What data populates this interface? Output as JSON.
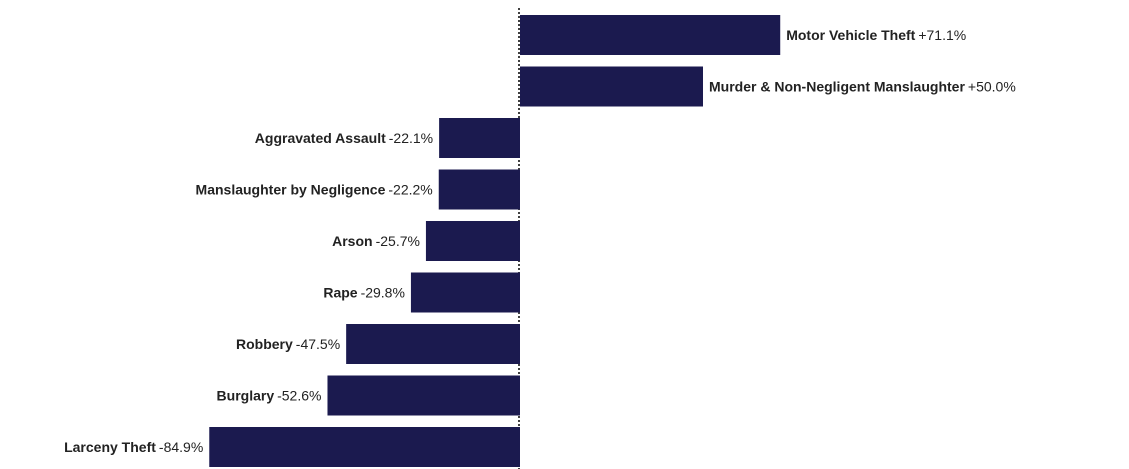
{
  "chart_data": {
    "type": "bar",
    "orientation": "horizontal",
    "categories": [
      "Motor Vehicle Theft",
      "Murder & Non-Negligent Manslaughter",
      "Aggravated Assault",
      "Manslaughter by Negligence",
      "Arson",
      "Rape",
      "Robbery",
      "Burglary",
      "Larceny Theft"
    ],
    "values": [
      71.1,
      50.0,
      -22.1,
      -22.2,
      -25.7,
      -29.8,
      -47.5,
      -52.6,
      -84.9
    ],
    "value_labels": [
      "+71.1%",
      "+50.0%",
      "-22.1%",
      "-22.2%",
      "-25.7%",
      "-29.8%",
      "-47.5%",
      "-52.6%",
      "-84.9%"
    ],
    "color": "#1b1a4f"
  }
}
